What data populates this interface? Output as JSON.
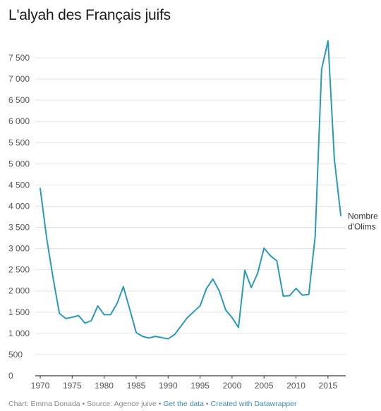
{
  "chart_data": {
    "type": "line",
    "title": "L'alyah des Français juifs",
    "xlabel": "",
    "ylabel": "",
    "xlim": [
      1970,
      2017
    ],
    "ylim": [
      0,
      7900
    ],
    "x_ticks": [
      1970,
      1975,
      1980,
      1985,
      1990,
      1995,
      2000,
      2005,
      2010,
      2015
    ],
    "y_ticks": [
      0,
      500,
      1000,
      1500,
      2000,
      2500,
      3000,
      3500,
      4000,
      4500,
      5000,
      5500,
      6000,
      6500,
      7000,
      7500
    ],
    "y_tick_labels": [
      "0",
      "500",
      "1 000",
      "1 500",
      "2 000",
      "2 500",
      "3 000",
      "3 500",
      "4 000",
      "4 500",
      "5 000",
      "5 500",
      "6 000",
      "6 500",
      "7 000",
      "7 500"
    ],
    "grid": true,
    "series": [
      {
        "name": "Nombre d'Olims",
        "label_lines": [
          "Nombre",
          "d'Olims"
        ],
        "color": "#2b9ab5",
        "x": [
          1970,
          1971,
          1972,
          1973,
          1974,
          1975,
          1976,
          1977,
          1978,
          1979,
          1980,
          1981,
          1982,
          1983,
          1984,
          1985,
          1986,
          1987,
          1988,
          1989,
          1990,
          1991,
          1992,
          1993,
          1994,
          1995,
          1996,
          1997,
          1998,
          1999,
          2000,
          2001,
          2002,
          2003,
          2004,
          2005,
          2006,
          2007,
          2008,
          2009,
          2010,
          2011,
          2012,
          2013,
          2014,
          2015,
          2016,
          2017
        ],
        "values": [
          4420,
          3250,
          2320,
          1470,
          1350,
          1380,
          1420,
          1240,
          1300,
          1650,
          1440,
          1440,
          1700,
          2100,
          1570,
          1020,
          930,
          890,
          930,
          900,
          870,
          970,
          1170,
          1370,
          1510,
          1650,
          2060,
          2280,
          2000,
          1550,
          1370,
          1140,
          2490,
          2080,
          2420,
          3010,
          2830,
          2710,
          1880,
          1890,
          2060,
          1900,
          1920,
          3290,
          7230,
          7900,
          5110,
          3780
        ]
      }
    ]
  },
  "footer": {
    "prefix": "Chart: Emma Donada • Source: Agence juive • ",
    "link1": "Get the data",
    "sep": " • ",
    "link2": "Created with Datawrapper"
  }
}
